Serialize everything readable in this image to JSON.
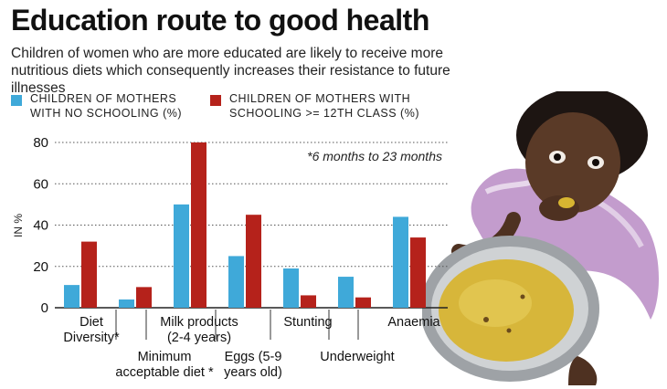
{
  "title": "Education route to good health",
  "subtitle": "Children of women who are more educated are likely to receive more nutritious diets which consequently increases their resistance to future illnesses",
  "colors": {
    "no_schooling": "#3fa9d9",
    "schooling_12": "#b5221b"
  },
  "photo": {
    "icon": "child-eating-from-plate-photo"
  },
  "chart_data": {
    "type": "bar",
    "ylabel": "IN %",
    "ylim": [
      0,
      80
    ],
    "yticks": [
      0,
      20,
      40,
      60,
      80
    ],
    "grid": true,
    "legend": "top-left",
    "annotation": "*6 months to 23 months",
    "categories": [
      "Diet Diversity*",
      "Minimum acceptable diet *",
      "Milk products (2-4 years)",
      "Eggs (5-9 years old)",
      "Stunting",
      "Underweight",
      "Anaemia"
    ],
    "category_label_lines": [
      [
        "Diet",
        "Diversity*"
      ],
      [
        "Minimum",
        "acceptable diet *"
      ],
      [
        "Milk products",
        "(2-4 years)"
      ],
      [
        "Eggs (5-9",
        "years old)"
      ],
      [
        "Stunting"
      ],
      [
        "Underweight"
      ],
      [
        "Anaemia"
      ]
    ],
    "series": [
      {
        "name": "CHILDREN OF MOTHERS WITH NO SCHOOLING (%)",
        "values": [
          11,
          4,
          50,
          25,
          19,
          15,
          44
        ]
      },
      {
        "name": "CHILDREN OF MOTHERS WITH SCHOOLING >= 12TH CLASS (%)",
        "values": [
          32,
          10,
          80,
          45,
          6,
          5,
          34
        ]
      }
    ]
  }
}
